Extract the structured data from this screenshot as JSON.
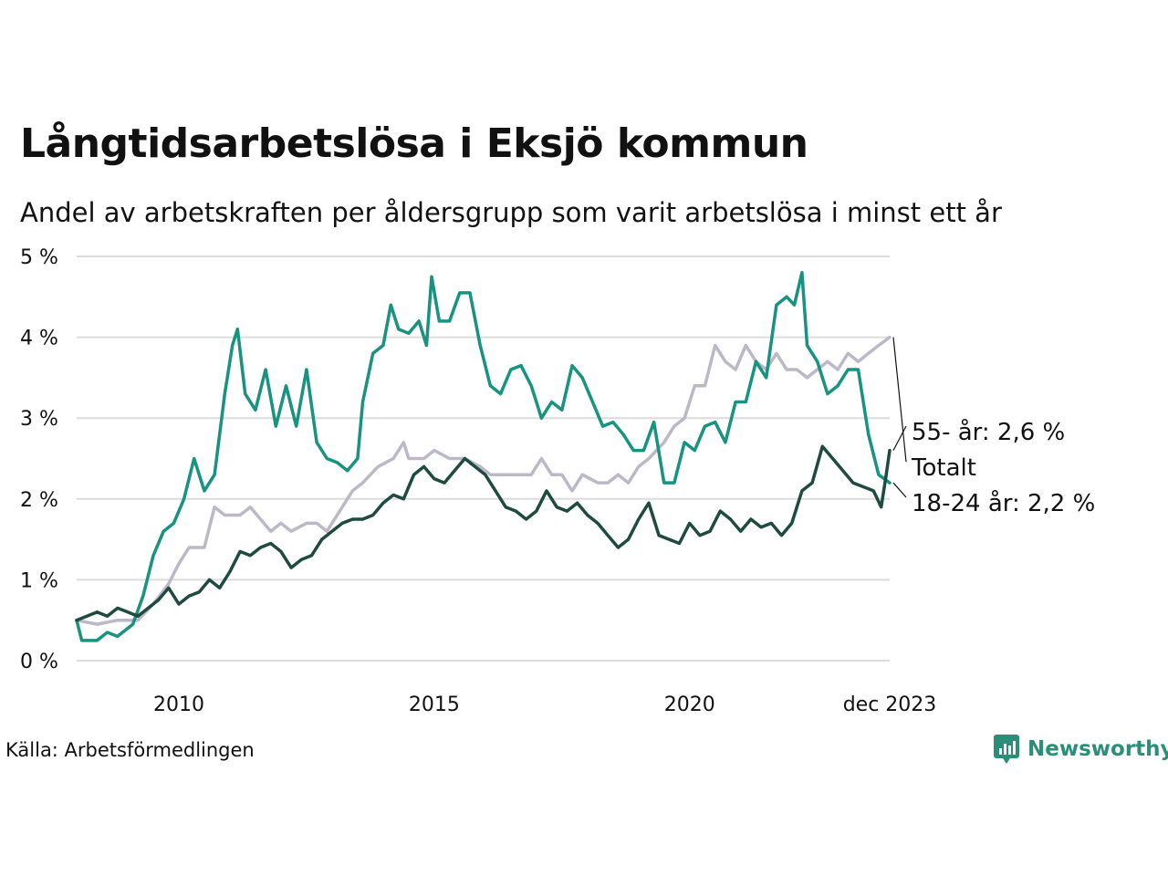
{
  "title": "Långtidsarbetslösa i Eksjö kommun",
  "subtitle": "Andel av arbetskraften per åldersgrupp som varit arbetslösa i minst ett år",
  "source": "Källa: Arbetsförmedlingen",
  "brand": "Newsworthy",
  "colors": {
    "young": "#17937f",
    "total": "#bcb8c7",
    "older": "#1f4a40",
    "grid": "#dcdcdc",
    "brand": "#2a8f78"
  },
  "chart_data": {
    "type": "line",
    "title": "Långtidsarbetslösa i Eksjö kommun",
    "xlabel": "",
    "ylabel": "",
    "x_range": [
      2008.0,
      2023.917
    ],
    "ylim": [
      0,
      5
    ],
    "y_ticks": [
      0,
      1,
      2,
      3,
      4,
      5
    ],
    "y_tick_labels": [
      "0 %",
      "1 %",
      "2 %",
      "3 %",
      "4 %",
      "5 %"
    ],
    "x_ticks": [
      2010,
      2015,
      2020,
      2023.917
    ],
    "x_tick_labels": [
      "2010",
      "2015",
      "2020",
      "dec 2023"
    ],
    "grid": true,
    "series": [
      {
        "name": "Totalt",
        "key": "total",
        "end_label": "Totalt",
        "points": [
          [
            2008.0,
            0.5
          ],
          [
            2008.4,
            0.45
          ],
          [
            2008.8,
            0.5
          ],
          [
            2009.2,
            0.5
          ],
          [
            2009.5,
            0.7
          ],
          [
            2009.8,
            0.95
          ],
          [
            2010.0,
            1.2
          ],
          [
            2010.2,
            1.4
          ],
          [
            2010.5,
            1.4
          ],
          [
            2010.7,
            1.9
          ],
          [
            2010.9,
            1.8
          ],
          [
            2011.2,
            1.8
          ],
          [
            2011.4,
            1.9
          ],
          [
            2011.6,
            1.75
          ],
          [
            2011.8,
            1.6
          ],
          [
            2012.0,
            1.7
          ],
          [
            2012.2,
            1.6
          ],
          [
            2012.5,
            1.7
          ],
          [
            2012.7,
            1.7
          ],
          [
            2012.9,
            1.6
          ],
          [
            2013.1,
            1.8
          ],
          [
            2013.4,
            2.1
          ],
          [
            2013.6,
            2.2
          ],
          [
            2013.9,
            2.4
          ],
          [
            2014.2,
            2.5
          ],
          [
            2014.4,
            2.7
          ],
          [
            2014.5,
            2.5
          ],
          [
            2014.8,
            2.5
          ],
          [
            2015.0,
            2.6
          ],
          [
            2015.3,
            2.5
          ],
          [
            2015.6,
            2.5
          ],
          [
            2015.9,
            2.4
          ],
          [
            2016.1,
            2.3
          ],
          [
            2016.5,
            2.3
          ],
          [
            2016.9,
            2.3
          ],
          [
            2017.1,
            2.5
          ],
          [
            2017.3,
            2.3
          ],
          [
            2017.5,
            2.3
          ],
          [
            2017.7,
            2.1
          ],
          [
            2017.9,
            2.3
          ],
          [
            2018.2,
            2.2
          ],
          [
            2018.4,
            2.2
          ],
          [
            2018.6,
            2.3
          ],
          [
            2018.8,
            2.2
          ],
          [
            2019.0,
            2.4
          ],
          [
            2019.2,
            2.5
          ],
          [
            2019.5,
            2.7
          ],
          [
            2019.7,
            2.9
          ],
          [
            2019.9,
            3.0
          ],
          [
            2020.1,
            3.4
          ],
          [
            2020.3,
            3.4
          ],
          [
            2020.5,
            3.9
          ],
          [
            2020.7,
            3.7
          ],
          [
            2020.9,
            3.6
          ],
          [
            2021.1,
            3.9
          ],
          [
            2021.3,
            3.7
          ],
          [
            2021.5,
            3.6
          ],
          [
            2021.7,
            3.8
          ],
          [
            2021.9,
            3.6
          ],
          [
            2022.1,
            3.6
          ],
          [
            2022.3,
            3.5
          ],
          [
            2022.5,
            3.6
          ],
          [
            2022.7,
            3.7
          ],
          [
            2022.9,
            3.6
          ],
          [
            2023.1,
            3.8
          ],
          [
            2023.3,
            3.7
          ],
          [
            2023.5,
            3.8
          ],
          [
            2023.7,
            3.9
          ],
          [
            2023.917,
            4.0
          ]
        ]
      },
      {
        "name": "18-24 år",
        "key": "young",
        "end_label": "18-24 år: 2,2 %",
        "points": [
          [
            2008.0,
            0.5
          ],
          [
            2008.1,
            0.25
          ],
          [
            2008.4,
            0.25
          ],
          [
            2008.6,
            0.35
          ],
          [
            2008.8,
            0.3
          ],
          [
            2009.1,
            0.45
          ],
          [
            2009.3,
            0.8
          ],
          [
            2009.5,
            1.3
          ],
          [
            2009.7,
            1.6
          ],
          [
            2009.9,
            1.7
          ],
          [
            2010.1,
            2.0
          ],
          [
            2010.3,
            2.5
          ],
          [
            2010.5,
            2.1
          ],
          [
            2010.7,
            2.3
          ],
          [
            2010.9,
            3.3
          ],
          [
            2011.05,
            3.9
          ],
          [
            2011.15,
            4.1
          ],
          [
            2011.3,
            3.3
          ],
          [
            2011.5,
            3.1
          ],
          [
            2011.7,
            3.6
          ],
          [
            2011.9,
            2.9
          ],
          [
            2012.1,
            3.4
          ],
          [
            2012.3,
            2.9
          ],
          [
            2012.5,
            3.6
          ],
          [
            2012.7,
            2.7
          ],
          [
            2012.9,
            2.5
          ],
          [
            2013.1,
            2.45
          ],
          [
            2013.3,
            2.35
          ],
          [
            2013.5,
            2.5
          ],
          [
            2013.6,
            3.2
          ],
          [
            2013.8,
            3.8
          ],
          [
            2014.0,
            3.9
          ],
          [
            2014.15,
            4.4
          ],
          [
            2014.3,
            4.1
          ],
          [
            2014.5,
            4.05
          ],
          [
            2014.7,
            4.2
          ],
          [
            2014.85,
            3.9
          ],
          [
            2014.95,
            4.75
          ],
          [
            2015.1,
            4.2
          ],
          [
            2015.3,
            4.2
          ],
          [
            2015.5,
            4.55
          ],
          [
            2015.7,
            4.55
          ],
          [
            2015.9,
            3.9
          ],
          [
            2016.1,
            3.4
          ],
          [
            2016.3,
            3.3
          ],
          [
            2016.5,
            3.6
          ],
          [
            2016.7,
            3.65
          ],
          [
            2016.9,
            3.4
          ],
          [
            2017.1,
            3.0
          ],
          [
            2017.3,
            3.2
          ],
          [
            2017.5,
            3.1
          ],
          [
            2017.7,
            3.65
          ],
          [
            2017.9,
            3.5
          ],
          [
            2018.1,
            3.2
          ],
          [
            2018.3,
            2.9
          ],
          [
            2018.5,
            2.95
          ],
          [
            2018.7,
            2.8
          ],
          [
            2018.9,
            2.6
          ],
          [
            2019.1,
            2.6
          ],
          [
            2019.3,
            2.95
          ],
          [
            2019.5,
            2.2
          ],
          [
            2019.7,
            2.2
          ],
          [
            2019.9,
            2.7
          ],
          [
            2020.1,
            2.6
          ],
          [
            2020.3,
            2.9
          ],
          [
            2020.5,
            2.95
          ],
          [
            2020.7,
            2.7
          ],
          [
            2020.9,
            3.2
          ],
          [
            2021.1,
            3.2
          ],
          [
            2021.3,
            3.7
          ],
          [
            2021.5,
            3.5
          ],
          [
            2021.7,
            4.4
          ],
          [
            2021.9,
            4.5
          ],
          [
            2022.05,
            4.4
          ],
          [
            2022.2,
            4.8
          ],
          [
            2022.3,
            3.9
          ],
          [
            2022.5,
            3.7
          ],
          [
            2022.7,
            3.3
          ],
          [
            2022.9,
            3.4
          ],
          [
            2023.1,
            3.6
          ],
          [
            2023.3,
            3.6
          ],
          [
            2023.5,
            2.8
          ],
          [
            2023.7,
            2.3
          ],
          [
            2023.917,
            2.2
          ]
        ]
      },
      {
        "name": "55- år",
        "key": "older",
        "end_label": "55- år: 2,6 %",
        "points": [
          [
            2008.0,
            0.5
          ],
          [
            2008.2,
            0.55
          ],
          [
            2008.4,
            0.6
          ],
          [
            2008.6,
            0.55
          ],
          [
            2008.8,
            0.65
          ],
          [
            2009.0,
            0.6
          ],
          [
            2009.2,
            0.55
          ],
          [
            2009.4,
            0.65
          ],
          [
            2009.6,
            0.75
          ],
          [
            2009.8,
            0.9
          ],
          [
            2010.0,
            0.7
          ],
          [
            2010.2,
            0.8
          ],
          [
            2010.4,
            0.85
          ],
          [
            2010.6,
            1.0
          ],
          [
            2010.8,
            0.9
          ],
          [
            2011.0,
            1.1
          ],
          [
            2011.2,
            1.35
          ],
          [
            2011.4,
            1.3
          ],
          [
            2011.6,
            1.4
          ],
          [
            2011.8,
            1.45
          ],
          [
            2012.0,
            1.35
          ],
          [
            2012.2,
            1.15
          ],
          [
            2012.4,
            1.25
          ],
          [
            2012.6,
            1.3
          ],
          [
            2012.8,
            1.5
          ],
          [
            2013.0,
            1.6
          ],
          [
            2013.2,
            1.7
          ],
          [
            2013.4,
            1.75
          ],
          [
            2013.6,
            1.75
          ],
          [
            2013.8,
            1.8
          ],
          [
            2014.0,
            1.95
          ],
          [
            2014.2,
            2.05
          ],
          [
            2014.4,
            2.0
          ],
          [
            2014.6,
            2.3
          ],
          [
            2014.8,
            2.4
          ],
          [
            2015.0,
            2.25
          ],
          [
            2015.2,
            2.2
          ],
          [
            2015.4,
            2.35
          ],
          [
            2015.6,
            2.5
          ],
          [
            2015.8,
            2.4
          ],
          [
            2016.0,
            2.3
          ],
          [
            2016.2,
            2.1
          ],
          [
            2016.4,
            1.9
          ],
          [
            2016.6,
            1.85
          ],
          [
            2016.8,
            1.75
          ],
          [
            2017.0,
            1.85
          ],
          [
            2017.2,
            2.1
          ],
          [
            2017.4,
            1.9
          ],
          [
            2017.6,
            1.85
          ],
          [
            2017.8,
            1.95
          ],
          [
            2018.0,
            1.8
          ],
          [
            2018.2,
            1.7
          ],
          [
            2018.4,
            1.55
          ],
          [
            2018.6,
            1.4
          ],
          [
            2018.8,
            1.5
          ],
          [
            2019.0,
            1.75
          ],
          [
            2019.2,
            1.95
          ],
          [
            2019.4,
            1.55
          ],
          [
            2019.6,
            1.5
          ],
          [
            2019.8,
            1.45
          ],
          [
            2020.0,
            1.7
          ],
          [
            2020.2,
            1.55
          ],
          [
            2020.4,
            1.6
          ],
          [
            2020.6,
            1.85
          ],
          [
            2020.8,
            1.75
          ],
          [
            2021.0,
            1.6
          ],
          [
            2021.2,
            1.75
          ],
          [
            2021.4,
            1.65
          ],
          [
            2021.6,
            1.7
          ],
          [
            2021.8,
            1.55
          ],
          [
            2022.0,
            1.7
          ],
          [
            2022.2,
            2.1
          ],
          [
            2022.4,
            2.2
          ],
          [
            2022.6,
            2.65
          ],
          [
            2022.8,
            2.5
          ],
          [
            2023.0,
            2.35
          ],
          [
            2023.2,
            2.2
          ],
          [
            2023.4,
            2.15
          ],
          [
            2023.6,
            2.1
          ],
          [
            2023.75,
            1.9
          ],
          [
            2023.85,
            2.3
          ],
          [
            2023.917,
            2.6
          ]
        ]
      }
    ]
  }
}
